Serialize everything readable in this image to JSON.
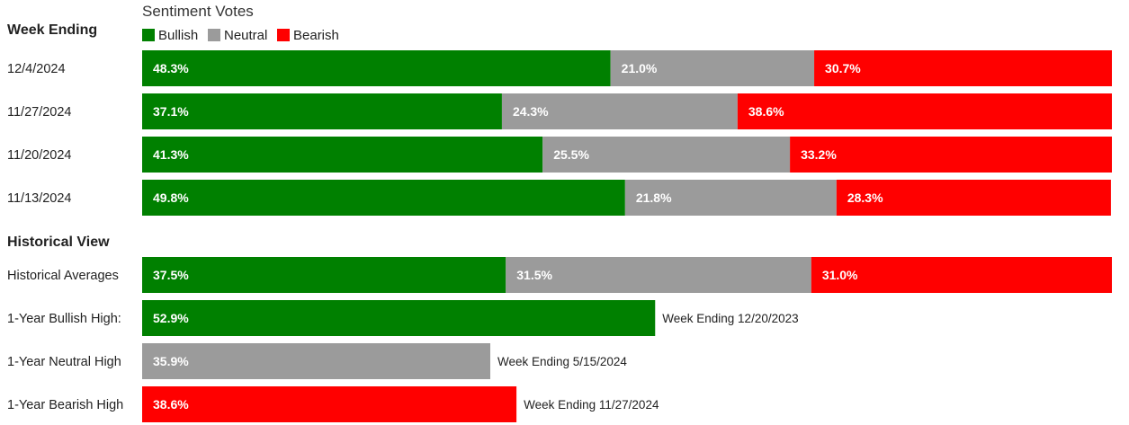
{
  "chart_data": {
    "type": "bar",
    "stacked": true,
    "orientation": "horizontal",
    "title": "Sentiment Votes",
    "legend": [
      {
        "name": "Bullish",
        "color": "#008000"
      },
      {
        "name": "Neutral",
        "color": "#9b9b9b"
      },
      {
        "name": "Bearish",
        "color": "#ff0000"
      }
    ],
    "weekly_heading": "Week Ending",
    "weekly": [
      {
        "label": "12/4/2024",
        "values": [
          48.3,
          21.0,
          30.7
        ],
        "labels": [
          "48.3%",
          "21.0%",
          "30.7%"
        ]
      },
      {
        "label": "11/27/2024",
        "values": [
          37.1,
          24.3,
          38.6
        ],
        "labels": [
          "37.1%",
          "24.3%",
          "38.6%"
        ]
      },
      {
        "label": "11/20/2024",
        "values": [
          41.3,
          25.5,
          33.2
        ],
        "labels": [
          "41.3%",
          "25.5%",
          "33.2%"
        ]
      },
      {
        "label": "11/13/2024",
        "values": [
          49.8,
          21.8,
          28.3
        ],
        "labels": [
          "49.8%",
          "21.8%",
          "28.3%"
        ]
      }
    ],
    "historical_heading": "Historical View",
    "historical_average": {
      "label": "Historical Averages",
      "values": [
        37.5,
        31.5,
        31.0
      ],
      "labels": [
        "37.5%",
        "31.5%",
        "31.0%"
      ]
    },
    "highs": [
      {
        "label": "1-Year Bullish High:",
        "value": 52.9,
        "value_label": "52.9%",
        "series": 0,
        "note": "Week Ending 12/20/2023"
      },
      {
        "label": "1-Year Neutral High",
        "value": 35.9,
        "value_label": "35.9%",
        "series": 1,
        "note": "Week Ending 5/15/2024"
      },
      {
        "label": "1-Year Bearish High",
        "value": 38.6,
        "value_label": "38.6%",
        "series": 2,
        "note": "Week Ending 11/27/2024"
      }
    ],
    "xlim": [
      0,
      100
    ]
  }
}
